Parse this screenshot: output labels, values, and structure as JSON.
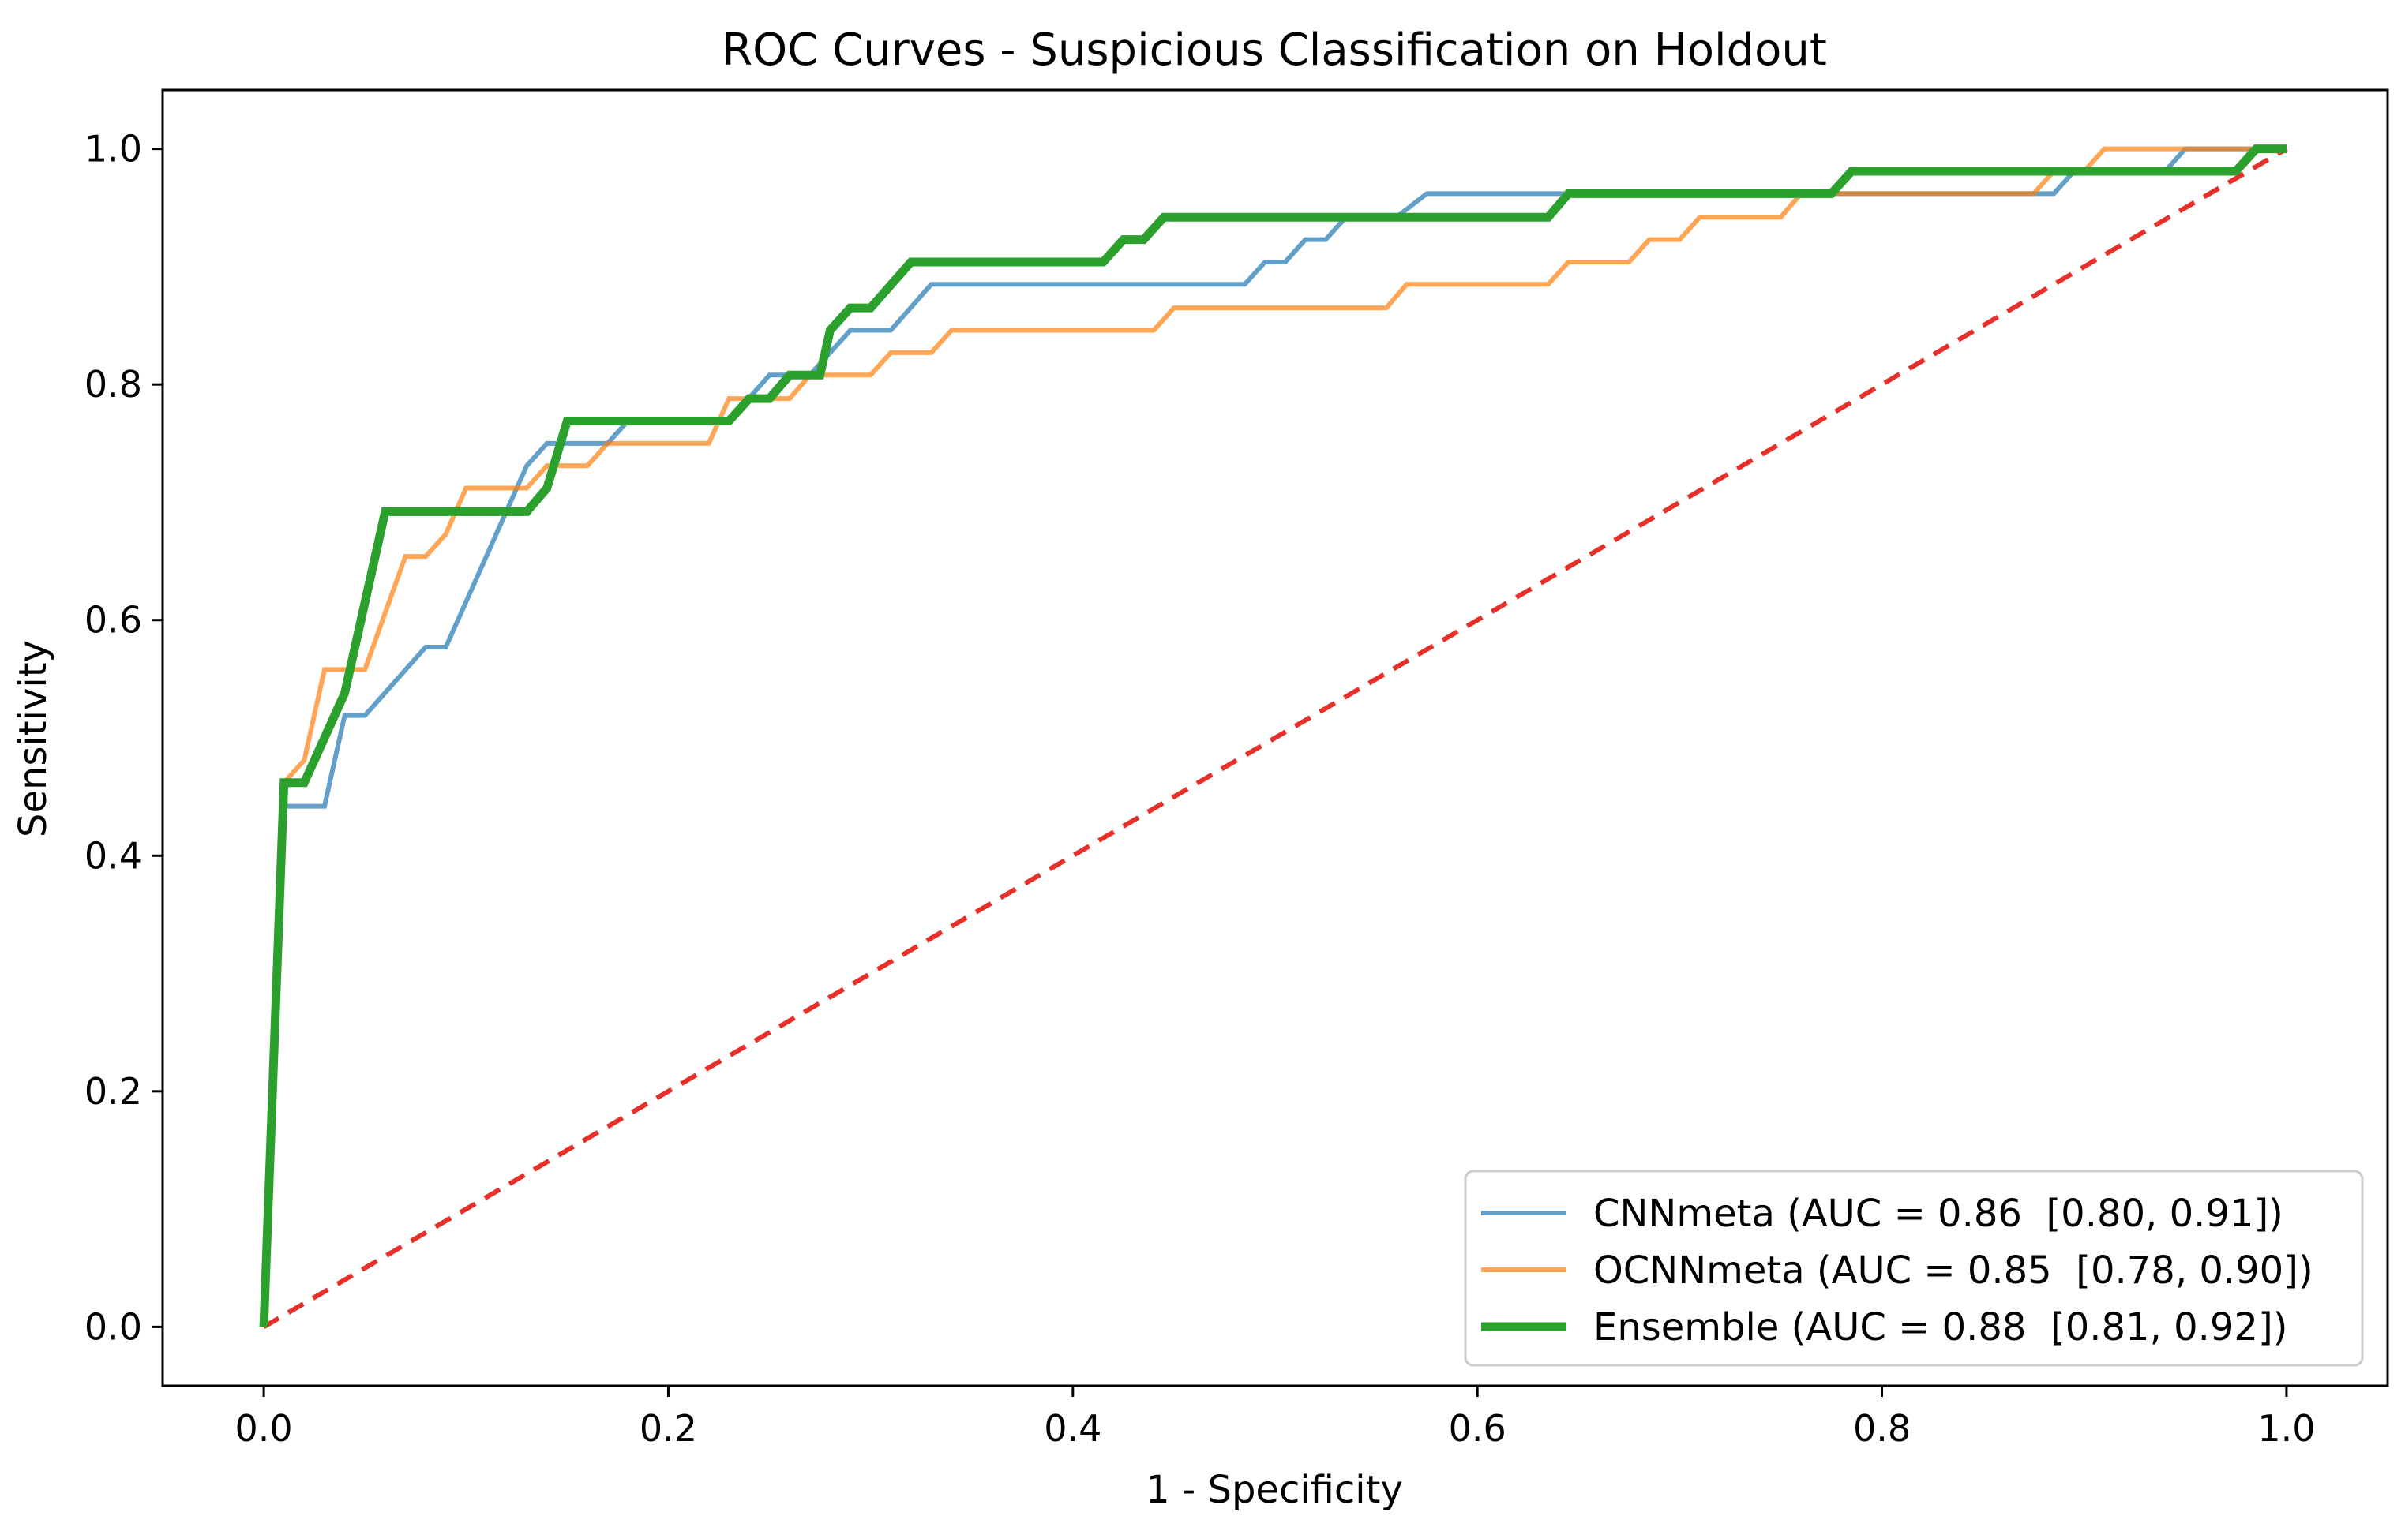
{
  "chart_data": {
    "type": "line",
    "title": "ROC Curves - Suspicious Classification on Holdout",
    "xlabel": "1 - Specificity",
    "ylabel": "Sensitivity",
    "xlim": [
      -0.05,
      1.05
    ],
    "ylim": [
      -0.05,
      1.05
    ],
    "xticks": [
      0.0,
      0.2,
      0.4,
      0.6,
      0.8,
      1.0
    ],
    "xtick_labels": [
      "0.0",
      "0.2",
      "0.4",
      "0.6",
      "0.8",
      "1.0"
    ],
    "yticks": [
      0.0,
      0.2,
      0.4,
      0.6,
      0.8,
      1.0
    ],
    "ytick_labels": [
      "0.0",
      "0.2",
      "0.4",
      "0.6",
      "0.8",
      "1.0"
    ],
    "grid": false,
    "legend_position": "bottom-right",
    "series": [
      {
        "name": "CNNmeta (AUC = 0.86  [0.80, 0.91])",
        "color": "#1f77b4",
        "opacity": 0.7,
        "width_class": "thin",
        "points": [
          [
            0,
            0
          ],
          [
            0.01,
            0.442
          ],
          [
            0.03,
            0.442
          ],
          [
            0.04,
            0.519
          ],
          [
            0.05,
            0.519
          ],
          [
            0.08,
            0.577
          ],
          [
            0.09,
            0.577
          ],
          [
            0.13,
            0.731
          ],
          [
            0.14,
            0.75
          ],
          [
            0.17,
            0.75
          ],
          [
            0.18,
            0.769
          ],
          [
            0.23,
            0.769
          ],
          [
            0.25,
            0.808
          ],
          [
            0.27,
            0.808
          ],
          [
            0.29,
            0.846
          ],
          [
            0.31,
            0.846
          ],
          [
            0.33,
            0.885
          ],
          [
            0.485,
            0.885
          ],
          [
            0.495,
            0.904
          ],
          [
            0.505,
            0.904
          ],
          [
            0.515,
            0.923
          ],
          [
            0.525,
            0.923
          ],
          [
            0.535,
            0.942
          ],
          [
            0.56,
            0.942
          ],
          [
            0.575,
            0.962
          ],
          [
            0.885,
            0.962
          ],
          [
            0.895,
            0.981
          ],
          [
            0.94,
            0.981
          ],
          [
            0.95,
            1.0
          ],
          [
            1.0,
            1.0
          ]
        ]
      },
      {
        "name": "OCNNmeta (AUC = 0.85  [0.78, 0.90])",
        "color": "#ff7f0e",
        "opacity": 0.7,
        "width_class": "thin",
        "points": [
          [
            0,
            0
          ],
          [
            0.01,
            0.462
          ],
          [
            0.02,
            0.481
          ],
          [
            0.03,
            0.558
          ],
          [
            0.05,
            0.558
          ],
          [
            0.07,
            0.654
          ],
          [
            0.08,
            0.654
          ],
          [
            0.09,
            0.673
          ],
          [
            0.1,
            0.712
          ],
          [
            0.13,
            0.712
          ],
          [
            0.14,
            0.731
          ],
          [
            0.16,
            0.731
          ],
          [
            0.17,
            0.75
          ],
          [
            0.22,
            0.75
          ],
          [
            0.23,
            0.788
          ],
          [
            0.26,
            0.788
          ],
          [
            0.27,
            0.808
          ],
          [
            0.3,
            0.808
          ],
          [
            0.31,
            0.827
          ],
          [
            0.33,
            0.827
          ],
          [
            0.34,
            0.846
          ],
          [
            0.44,
            0.846
          ],
          [
            0.45,
            0.865
          ],
          [
            0.555,
            0.865
          ],
          [
            0.565,
            0.885
          ],
          [
            0.635,
            0.885
          ],
          [
            0.645,
            0.904
          ],
          [
            0.675,
            0.904
          ],
          [
            0.685,
            0.923
          ],
          [
            0.7,
            0.923
          ],
          [
            0.71,
            0.942
          ],
          [
            0.75,
            0.942
          ],
          [
            0.76,
            0.962
          ],
          [
            0.875,
            0.962
          ],
          [
            0.885,
            0.981
          ],
          [
            0.9,
            0.981
          ],
          [
            0.91,
            1.0
          ],
          [
            1.0,
            1.0
          ]
        ]
      },
      {
        "name": "Ensemble (AUC = 0.88  [0.81, 0.92])",
        "color": "#2ca02c",
        "opacity": 1.0,
        "width_class": "thick",
        "points": [
          [
            0,
            0
          ],
          [
            0.01,
            0.462
          ],
          [
            0.02,
            0.462
          ],
          [
            0.04,
            0.538
          ],
          [
            0.06,
            0.692
          ],
          [
            0.13,
            0.692
          ],
          [
            0.14,
            0.712
          ],
          [
            0.15,
            0.769
          ],
          [
            0.23,
            0.769
          ],
          [
            0.24,
            0.788
          ],
          [
            0.25,
            0.788
          ],
          [
            0.26,
            0.808
          ],
          [
            0.275,
            0.808
          ],
          [
            0.28,
            0.846
          ],
          [
            0.29,
            0.865
          ],
          [
            0.3,
            0.865
          ],
          [
            0.32,
            0.904
          ],
          [
            0.415,
            0.904
          ],
          [
            0.425,
            0.923
          ],
          [
            0.435,
            0.923
          ],
          [
            0.445,
            0.942
          ],
          [
            0.635,
            0.942
          ],
          [
            0.645,
            0.962
          ],
          [
            0.775,
            0.962
          ],
          [
            0.785,
            0.981
          ],
          [
            0.975,
            0.981
          ],
          [
            0.985,
            1.0
          ],
          [
            1.0,
            1.0
          ]
        ]
      }
    ],
    "reference_line": {
      "name": "chance",
      "color": "#e8302a",
      "style": "dashed",
      "points": [
        [
          0,
          0
        ],
        [
          1,
          1
        ]
      ]
    }
  }
}
